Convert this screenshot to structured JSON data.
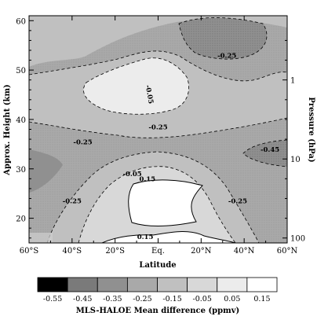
{
  "chart_data": {
    "type": "contour",
    "xlabel": "Latitude",
    "ylabel": "Approx. Height (km)",
    "y2label": "Pressure (hPa)",
    "xlim": [
      -60,
      60
    ],
    "ylim": [
      15,
      61
    ],
    "x_ticks": [
      {
        "value": -60,
        "label": "60°S"
      },
      {
        "value": -40,
        "label": "40°S"
      },
      {
        "value": -20,
        "label": "20°S"
      },
      {
        "value": 0,
        "label": "Eq."
      },
      {
        "value": 20,
        "label": "20°N"
      },
      {
        "value": 40,
        "label": "40°N"
      },
      {
        "value": 60,
        "label": "60°N"
      }
    ],
    "y_ticks": [
      {
        "value": 20,
        "label": "20"
      },
      {
        "value": 30,
        "label": "30"
      },
      {
        "value": 40,
        "label": "40"
      },
      {
        "value": 50,
        "label": "50"
      },
      {
        "value": 60,
        "label": "60"
      }
    ],
    "pressure_ticks": [
      {
        "value": 48,
        "label": "1"
      },
      {
        "value": 32,
        "label": "10"
      },
      {
        "value": 16,
        "label": "100"
      }
    ],
    "contour_labels": [
      {
        "text": "-0.25",
        "lat": 32,
        "height": 52.5
      },
      {
        "text": "-0.05",
        "lat": -5,
        "height": 45,
        "rotate": 80
      },
      {
        "text": "-0.25",
        "lat": 0,
        "height": 38
      },
      {
        "text": "-0.25",
        "lat": -35,
        "height": 35
      },
      {
        "text": "-0.45",
        "lat": 52,
        "height": 33.5
      },
      {
        "text": "-0.25",
        "lat": -40,
        "height": 23
      },
      {
        "text": "-0.25",
        "lat": 37,
        "height": 23
      },
      {
        "text": "-0.05",
        "lat": -12,
        "height": 28.5
      },
      {
        "text": "0.15",
        "lat": -5,
        "height": 27.5
      },
      {
        "text": "0.15",
        "lat": -6,
        "height": 15.8
      }
    ],
    "colorbar": {
      "title": "MLS-HALOE Mean difference (ppmv)",
      "levels": [
        "-0.55",
        "-0.45",
        "-0.35",
        "-0.25",
        "-0.15",
        "-0.05",
        "0.05",
        "0.15"
      ],
      "colors": [
        "#000000",
        "#7a7a7a",
        "#909090",
        "#a9a9a9",
        "#c0c0c0",
        "#d8d8d8",
        "#ececec",
        "#ffffff"
      ]
    },
    "grid": false
  }
}
